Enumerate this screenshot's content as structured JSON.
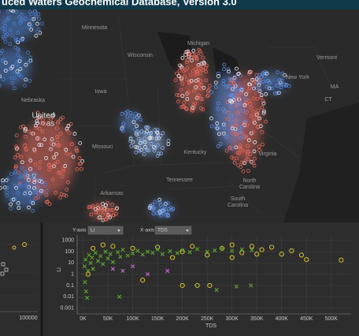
{
  "header": {
    "title": "uced Waters Geochemical Database, Version 3.0"
  },
  "map": {
    "labels": [
      "Minnesota",
      "Wisconsin",
      "Michigan",
      "Iowa",
      "Nebraska",
      "United",
      "as",
      "Missouri",
      "Kentucky",
      "Tennessee",
      "Arkansas",
      "North",
      "Carolina",
      "South",
      "Carolina",
      "Virginia",
      "New York",
      "Vermont",
      "MA",
      "CT"
    ]
  },
  "controls": {
    "y_axis": {
      "label": "Y-axis",
      "value": "Li"
    },
    "x_axis": {
      "label": "X-axis",
      "value": "TDS"
    }
  },
  "side_chart": {
    "xticks": [
      100000
    ]
  },
  "chart_data": {
    "type": "scatter",
    "xlabel": "TDS",
    "ylabel": "Li",
    "log_y": true,
    "grid": true,
    "xlim": [
      -12000,
      540000
    ],
    "ylim": [
      0.0003,
      3000
    ],
    "xticks": [
      {
        "value": 0,
        "label": "0K"
      },
      {
        "value": 50000,
        "label": "50K"
      },
      {
        "value": 100000,
        "label": "100K"
      },
      {
        "value": 150000,
        "label": "150K"
      },
      {
        "value": 200000,
        "label": "200K"
      },
      {
        "value": 250000,
        "label": "250K"
      },
      {
        "value": 300000,
        "label": "300K"
      },
      {
        "value": 350000,
        "label": "350K"
      },
      {
        "value": 400000,
        "label": "400K"
      },
      {
        "value": 450000,
        "label": "450K"
      },
      {
        "value": 500000,
        "label": "500K"
      }
    ],
    "yticks": [
      0.001,
      0.01,
      0.1,
      1,
      10,
      100,
      1000
    ],
    "series": [
      {
        "color": "#d8c431",
        "marker": "circle",
        "x": [
          10000,
          20000,
          40000,
          60000,
          100000,
          120000,
          150000,
          180000,
          200000,
          200000,
          220000,
          230000,
          250000,
          255000,
          280000,
          300000,
          300000,
          320000,
          340000,
          350000,
          360000,
          380000,
          400000,
          420000,
          440000,
          450000,
          520000
        ],
        "y": [
          1,
          200,
          400,
          300,
          200,
          0.3,
          250,
          30,
          100,
          0.1,
          300,
          0.1,
          50,
          0.1,
          200,
          400,
          30,
          80,
          300,
          60,
          150,
          250,
          60,
          120,
          50,
          20,
          18
        ]
      },
      {
        "color": "#5ea82e",
        "marker": "x",
        "x": [
          3000,
          4000,
          5000,
          6000,
          8000,
          10000,
          12000,
          15000,
          18000,
          20000,
          25000,
          30000,
          35000,
          40000,
          45000,
          50000,
          55000,
          60000,
          70000,
          73000,
          75000,
          80000,
          90000,
          100000,
          110000,
          120000,
          130000,
          140000,
          150000,
          160000,
          175000,
          190000,
          200000,
          215000,
          230000,
          250000,
          265000,
          269000,
          280000,
          300000,
          309000,
          320000,
          338000,
          340000
        ],
        "y": [
          5,
          0.2,
          20,
          0.03,
          0.008,
          2,
          50,
          10,
          30,
          3,
          80,
          15,
          40,
          8,
          100,
          25,
          60,
          12,
          90,
          0.01,
          35,
          150,
          45,
          70,
          120,
          55,
          100,
          80,
          160,
          60,
          110,
          75,
          140,
          90,
          170,
          100,
          130,
          0.04,
          200,
          120,
          0.08,
          160,
          0.1,
          140
        ]
      },
      {
        "color": "#c66ad0",
        "marker": "x",
        "x": [
          60000,
          80000,
          100000,
          130000,
          170000
        ],
        "y": [
          3,
          2,
          5,
          1,
          2
        ]
      }
    ]
  }
}
